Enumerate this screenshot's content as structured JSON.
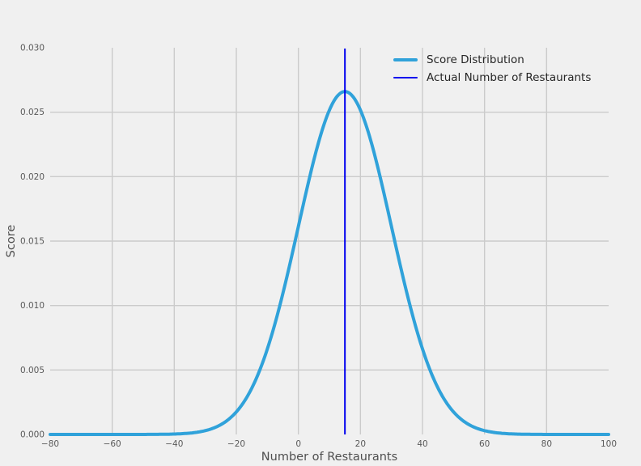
{
  "figure": {
    "background_color": "#f0f0f0",
    "grid_color": "#cbcbcb",
    "tick_label_color": "#595959",
    "axis_title_color": "#4f4f4f",
    "legend_text_color": "#262626"
  },
  "chart_data": {
    "type": "line",
    "title": "",
    "xlabel": "Number of Restaurants",
    "ylabel": "Score",
    "xlim": [
      -80,
      100
    ],
    "ylim": [
      0,
      0.03
    ],
    "grid": true,
    "x_ticks": [
      -80,
      -60,
      -40,
      -20,
      0,
      20,
      40,
      60,
      80,
      100
    ],
    "x_tick_labels": [
      "−80",
      "−60",
      "−40",
      "−20",
      "0",
      "20",
      "40",
      "60",
      "80",
      "100"
    ],
    "y_ticks": [
      0,
      0.005,
      0.01,
      0.015,
      0.02,
      0.025,
      0.03
    ],
    "y_tick_labels": [
      "0.000",
      "0.005",
      "0.010",
      "0.015",
      "0.020",
      "0.025",
      "0.030"
    ],
    "legend": {
      "position": "upper right",
      "frame": false
    },
    "series": [
      {
        "name": "Score Distribution",
        "type": "line",
        "color": "#30a2da",
        "line_width": 4,
        "distribution": {
          "shape": "gaussian",
          "mean": 15,
          "std": 15,
          "peak": 0.0266
        },
        "x": [
          -80,
          -75,
          -70,
          -65,
          -60,
          -55,
          -50,
          -45,
          -40,
          -35,
          -30,
          -25,
          -20,
          -15,
          -10,
          -5,
          0,
          5,
          10,
          15,
          20,
          25,
          30,
          35,
          40,
          45,
          50,
          55,
          60,
          65,
          70,
          75,
          80,
          85,
          90,
          95,
          100
        ],
        "y": [
          0.0,
          0.0,
          0.0,
          0.0,
          0.0,
          1e-06,
          2e-06,
          9e-06,
          3.2e-05,
          0.000103,
          0.000295,
          0.00076,
          0.001747,
          0.0036,
          0.006633,
          0.010934,
          0.016131,
          0.021297,
          0.025158,
          0.0266,
          0.025158,
          0.021297,
          0.016131,
          0.010934,
          0.006633,
          0.0036,
          0.001747,
          0.00076,
          0.000295,
          0.000103,
          3.2e-05,
          9e-06,
          2e-06,
          1e-06,
          0.0,
          0.0,
          0.0
        ]
      },
      {
        "name": "Actual Number of Restaurants",
        "type": "vline",
        "color": "#0000ee",
        "line_width": 2,
        "x": 15
      }
    ]
  }
}
